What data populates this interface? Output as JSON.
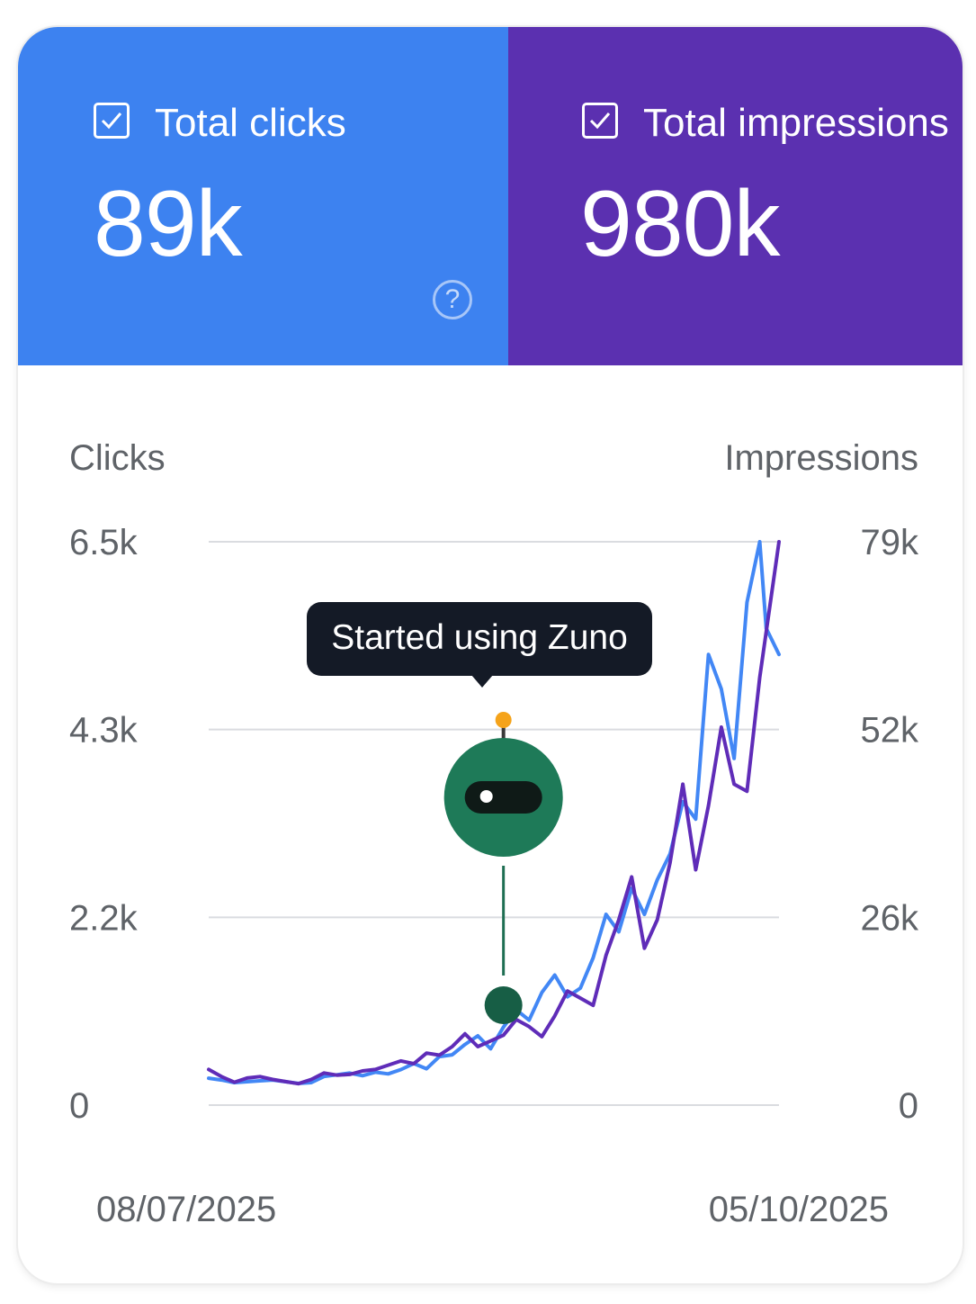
{
  "summary": {
    "clicks": {
      "label": "Total clicks",
      "value": "89k",
      "checked": true,
      "color": "#3d82f0"
    },
    "impressions": {
      "label": "Total impressions",
      "value": "980k",
      "checked": true,
      "color": "#5b30b0"
    }
  },
  "annotation": {
    "label": "Started using Zuno",
    "x": "2025-08-23",
    "icon": "robot-mascot-icon",
    "color": "#1e7a58"
  },
  "chart_data": {
    "type": "line",
    "y_left_label": "Clicks",
    "y_right_label": "Impressions",
    "y_left_ticks": [
      "0",
      "2.2k",
      "4.3k",
      "6.5k"
    ],
    "y_right_ticks": [
      "0",
      "26k",
      "52k",
      "79k"
    ],
    "y_left_range": [
      0,
      6500
    ],
    "y_right_range": [
      0,
      79000
    ],
    "x_start_label": "08/07/2025",
    "x_end_label": "05/10/2025",
    "x_range": [
      "2025-07-08",
      "2025-10-05"
    ],
    "grid": true,
    "series": [
      {
        "name": "Total clicks",
        "axis": "left",
        "color": "#4287f5",
        "points": [
          [
            "2025-07-08",
            310
          ],
          [
            "2025-07-10",
            290
          ],
          [
            "2025-07-12",
            260
          ],
          [
            "2025-07-14",
            270
          ],
          [
            "2025-07-16",
            280
          ],
          [
            "2025-07-18",
            290
          ],
          [
            "2025-07-20",
            270
          ],
          [
            "2025-07-22",
            250
          ],
          [
            "2025-07-24",
            260
          ],
          [
            "2025-07-26",
            330
          ],
          [
            "2025-07-28",
            350
          ],
          [
            "2025-07-30",
            370
          ],
          [
            "2025-08-01",
            340
          ],
          [
            "2025-08-03",
            380
          ],
          [
            "2025-08-05",
            360
          ],
          [
            "2025-08-07",
            410
          ],
          [
            "2025-08-09",
            480
          ],
          [
            "2025-08-11",
            420
          ],
          [
            "2025-08-13",
            560
          ],
          [
            "2025-08-15",
            580
          ],
          [
            "2025-08-17",
            700
          ],
          [
            "2025-08-19",
            800
          ],
          [
            "2025-08-21",
            650
          ],
          [
            "2025-08-23",
            900
          ],
          [
            "2025-08-25",
            1100
          ],
          [
            "2025-08-27",
            980
          ],
          [
            "2025-08-29",
            1300
          ],
          [
            "2025-08-31",
            1500
          ],
          [
            "2025-09-02",
            1250
          ],
          [
            "2025-09-04",
            1350
          ],
          [
            "2025-09-06",
            1700
          ],
          [
            "2025-09-08",
            2200
          ],
          [
            "2025-09-10",
            2000
          ],
          [
            "2025-09-12",
            2500
          ],
          [
            "2025-09-14",
            2200
          ],
          [
            "2025-09-16",
            2600
          ],
          [
            "2025-09-18",
            2900
          ],
          [
            "2025-09-20",
            3500
          ],
          [
            "2025-09-22",
            3300
          ],
          [
            "2025-09-24",
            5200
          ],
          [
            "2025-09-26",
            4800
          ],
          [
            "2025-09-28",
            4000
          ],
          [
            "2025-09-30",
            5800
          ],
          [
            "2025-10-02",
            6500
          ],
          [
            "2025-10-03",
            5500
          ],
          [
            "2025-10-05",
            5200
          ]
        ]
      },
      {
        "name": "Total impressions",
        "axis": "right",
        "color": "#5f2cb8",
        "points": [
          [
            "2025-07-08",
            5000
          ],
          [
            "2025-07-10",
            4000
          ],
          [
            "2025-07-12",
            3200
          ],
          [
            "2025-07-14",
            3800
          ],
          [
            "2025-07-16",
            4000
          ],
          [
            "2025-07-18",
            3600
          ],
          [
            "2025-07-20",
            3300
          ],
          [
            "2025-07-22",
            3000
          ],
          [
            "2025-07-24",
            3600
          ],
          [
            "2025-07-26",
            4500
          ],
          [
            "2025-07-28",
            4200
          ],
          [
            "2025-07-30",
            4300
          ],
          [
            "2025-08-01",
            4800
          ],
          [
            "2025-08-03",
            5000
          ],
          [
            "2025-08-05",
            5600
          ],
          [
            "2025-08-07",
            6200
          ],
          [
            "2025-08-09",
            5800
          ],
          [
            "2025-08-11",
            7300
          ],
          [
            "2025-08-13",
            7000
          ],
          [
            "2025-08-15",
            8200
          ],
          [
            "2025-08-17",
            10000
          ],
          [
            "2025-08-19",
            8200
          ],
          [
            "2025-08-21",
            9000
          ],
          [
            "2025-08-23",
            9800
          ],
          [
            "2025-08-25",
            12000
          ],
          [
            "2025-08-27",
            11000
          ],
          [
            "2025-08-29",
            9600
          ],
          [
            "2025-08-31",
            12500
          ],
          [
            "2025-09-02",
            16000
          ],
          [
            "2025-09-04",
            15000
          ],
          [
            "2025-09-06",
            14000
          ],
          [
            "2025-09-08",
            21000
          ],
          [
            "2025-09-10",
            26000
          ],
          [
            "2025-09-12",
            32000
          ],
          [
            "2025-09-14",
            22000
          ],
          [
            "2025-09-16",
            26000
          ],
          [
            "2025-09-18",
            34000
          ],
          [
            "2025-09-20",
            45000
          ],
          [
            "2025-09-22",
            33000
          ],
          [
            "2025-09-24",
            42000
          ],
          [
            "2025-09-26",
            53000
          ],
          [
            "2025-09-28",
            45000
          ],
          [
            "2025-09-30",
            44000
          ],
          [
            "2025-10-02",
            60000
          ],
          [
            "2025-10-05",
            79000
          ]
        ]
      }
    ]
  }
}
